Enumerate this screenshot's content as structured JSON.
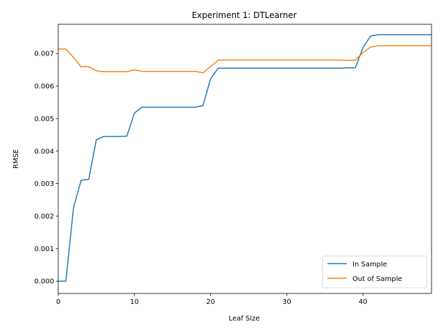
{
  "chart_data": {
    "type": "line",
    "title": "Experiment 1: DTLearner",
    "xlabel": "Leaf Size",
    "ylabel": "RMSE",
    "xlim": [
      0,
      49
    ],
    "ylim": [
      -0.00038,
      0.0079
    ],
    "x_ticks": [
      0,
      10,
      20,
      30,
      40
    ],
    "x_tick_labels": [
      "0",
      "10",
      "20",
      "30",
      "40"
    ],
    "y_ticks": [
      0,
      0.001,
      0.002,
      0.003,
      0.004,
      0.005,
      0.006,
      0.007
    ],
    "y_tick_labels": [
      "0.000",
      "0.001",
      "0.002",
      "0.003",
      "0.004",
      "0.005",
      "0.006",
      "0.007"
    ],
    "grid": false,
    "legend_position": "lower-right",
    "x": [
      0,
      1,
      2,
      3,
      4,
      5,
      6,
      7,
      8,
      9,
      10,
      11,
      12,
      13,
      14,
      15,
      16,
      17,
      18,
      19,
      20,
      21,
      22,
      23,
      24,
      25,
      26,
      27,
      28,
      29,
      30,
      31,
      32,
      33,
      34,
      35,
      36,
      37,
      38,
      39,
      40,
      41,
      42,
      43,
      44,
      45,
      46,
      47,
      48,
      49
    ],
    "series": [
      {
        "name": "In Sample",
        "color": "#1f77b4",
        "values": [
          0.0,
          0.0,
          0.00226,
          0.0031,
          0.00313,
          0.00435,
          0.00445,
          0.00445,
          0.00445,
          0.00446,
          0.00517,
          0.00535,
          0.00535,
          0.00535,
          0.00535,
          0.00535,
          0.00535,
          0.00535,
          0.00535,
          0.0054,
          0.00623,
          0.00655,
          0.00655,
          0.00655,
          0.00655,
          0.00655,
          0.00655,
          0.00655,
          0.00655,
          0.00655,
          0.00655,
          0.00655,
          0.00655,
          0.00655,
          0.00655,
          0.00655,
          0.00655,
          0.00655,
          0.00656,
          0.00656,
          0.00718,
          0.00754,
          0.00758,
          0.00758,
          0.00758,
          0.00758,
          0.00758,
          0.00758,
          0.00758,
          0.00758
        ]
      },
      {
        "name": "Out of Sample",
        "color": "#ff7f0e",
        "values": [
          0.00714,
          0.00714,
          0.00688,
          0.00659,
          0.0066,
          0.00647,
          0.00644,
          0.00644,
          0.00644,
          0.00644,
          0.0065,
          0.00645,
          0.00645,
          0.00645,
          0.00645,
          0.00645,
          0.00645,
          0.00645,
          0.00645,
          0.00641,
          0.0066,
          0.0068,
          0.0068,
          0.0068,
          0.0068,
          0.0068,
          0.0068,
          0.0068,
          0.0068,
          0.0068,
          0.0068,
          0.0068,
          0.0068,
          0.0068,
          0.0068,
          0.0068,
          0.0068,
          0.0068,
          0.00679,
          0.00679,
          0.00703,
          0.0072,
          0.00724,
          0.00724,
          0.00724,
          0.00724,
          0.00724,
          0.00724,
          0.00724,
          0.00724
        ]
      }
    ]
  }
}
